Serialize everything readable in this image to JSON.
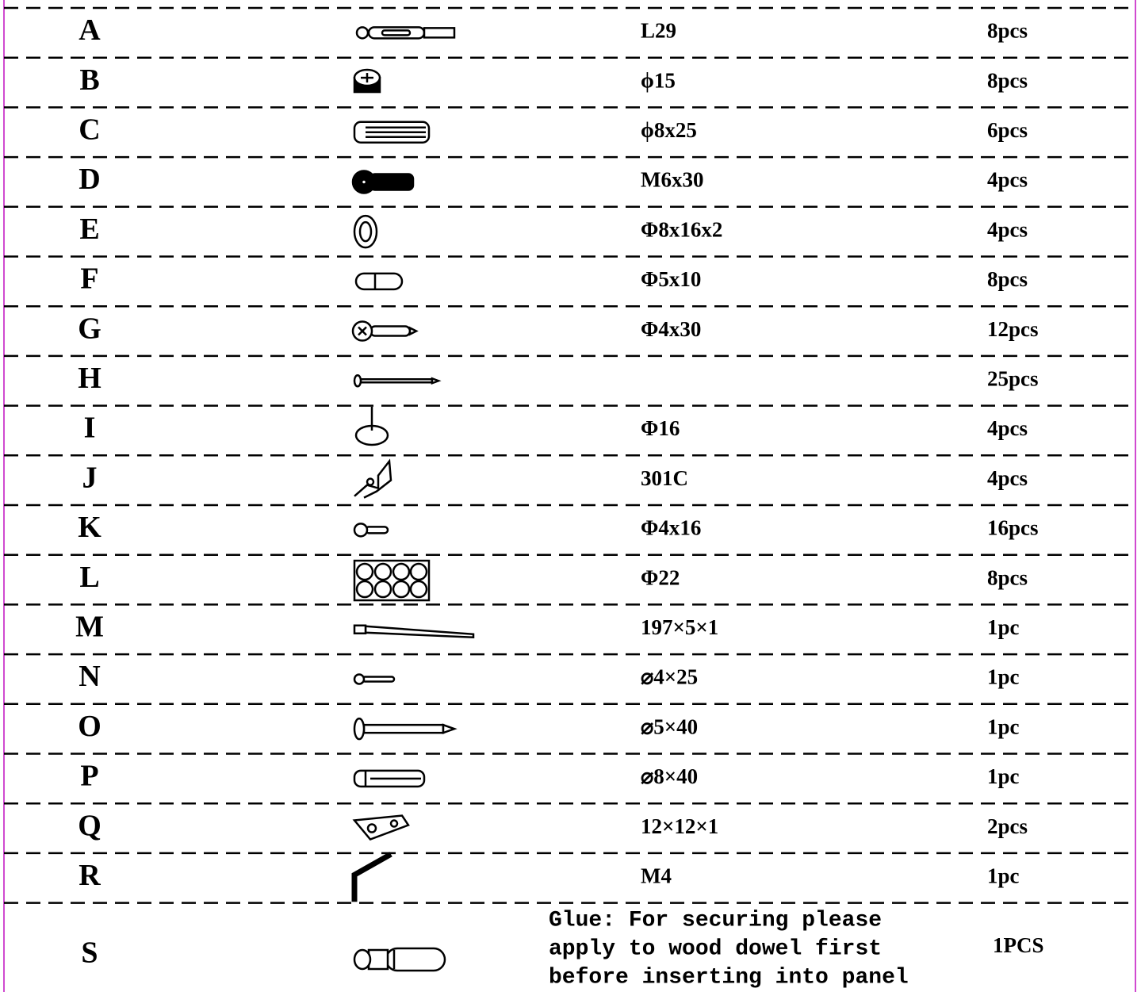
{
  "table": {
    "rows": [
      {
        "letter": "A",
        "spec": "L29",
        "qty": "8pcs"
      },
      {
        "letter": "B",
        "spec": "ϕ15",
        "qty": "8pcs"
      },
      {
        "letter": "C",
        "spec": "ϕ8x25",
        "qty": "6pcs"
      },
      {
        "letter": "D",
        "spec": "M6x30",
        "qty": "4pcs"
      },
      {
        "letter": "E",
        "spec": "Φ8x16x2",
        "qty": "4pcs"
      },
      {
        "letter": "F",
        "spec": "Φ5x10",
        "qty": "8pcs"
      },
      {
        "letter": "G",
        "spec": "Φ4x30",
        "qty": "12pcs"
      },
      {
        "letter": "H",
        "spec": null,
        "qty": "25pcs"
      },
      {
        "letter": "I",
        "spec": "Φ16",
        "qty": "4pcs"
      },
      {
        "letter": "J",
        "spec": "301C",
        "qty": "4pcs"
      },
      {
        "letter": "K",
        "spec": "Φ4x16",
        "qty": "16pcs"
      },
      {
        "letter": "L",
        "spec": "Φ22",
        "qty": "8pcs"
      },
      {
        "letter": "M",
        "spec": "197×5×1",
        "qty": "1pc"
      },
      {
        "letter": "N",
        "spec": "⌀4×25",
        "qty": "1pc"
      },
      {
        "letter": "O",
        "spec": "⌀5×40",
        "qty": "1pc"
      },
      {
        "letter": "P",
        "spec": "⌀8×40",
        "qty": "1pc"
      },
      {
        "letter": "Q",
        "spec": "12×12×1",
        "qty": "2pcs"
      },
      {
        "letter": "R",
        "spec": "M4",
        "qty": "1pc"
      },
      {
        "letter": "S",
        "spec_lines": [
          "Glue: For securing please",
          "apply to wood dowel first",
          "before inserting into panel"
        ],
        "qty": "1PCS"
      }
    ]
  }
}
